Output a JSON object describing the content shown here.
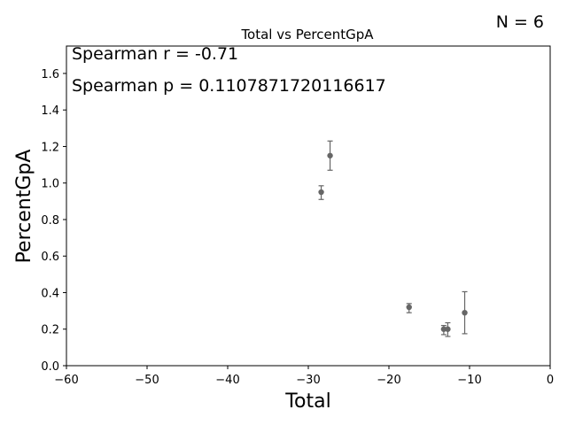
{
  "chart_data": {
    "type": "scatter",
    "title": "Total vs PercentGpA",
    "xlabel": "Total",
    "ylabel": "PercentGpA",
    "xlim": [
      -60,
      0
    ],
    "ylim": [
      0,
      1.75
    ],
    "xticks": [
      -60,
      -50,
      -40,
      -30,
      -20,
      -10,
      0
    ],
    "xtick_labels": [
      "−60",
      "−50",
      "−40",
      "−30",
      "−20",
      "−10",
      "0"
    ],
    "yticks": [
      0.0,
      0.2,
      0.4,
      0.6,
      0.8,
      1.0,
      1.2,
      1.4,
      1.6
    ],
    "ytick_labels": [
      "0.0",
      "0.2",
      "0.4",
      "0.6",
      "0.8",
      "1.0",
      "1.2",
      "1.4",
      "1.6"
    ],
    "grid": false,
    "marker_color": "#666666",
    "points": [
      {
        "x": -28.4,
        "y": 0.95,
        "err_low": 0.04,
        "err_high": 0.035
      },
      {
        "x": -27.3,
        "y": 1.15,
        "err_low": 0.08,
        "err_high": 0.08
      },
      {
        "x": -17.5,
        "y": 0.32,
        "err_low": 0.03,
        "err_high": 0.02
      },
      {
        "x": -13.2,
        "y": 0.2,
        "err_low": 0.03,
        "err_high": 0.02
      },
      {
        "x": -12.7,
        "y": 0.2,
        "err_low": 0.04,
        "err_high": 0.035
      },
      {
        "x": -10.6,
        "y": 0.29,
        "err_low": 0.115,
        "err_high": 0.115
      }
    ],
    "annotations": {
      "n_label": "N = 6",
      "spearman_r": "Spearman r = -0.71",
      "spearman_p": "Spearman p = 0.1107871720116617"
    }
  }
}
